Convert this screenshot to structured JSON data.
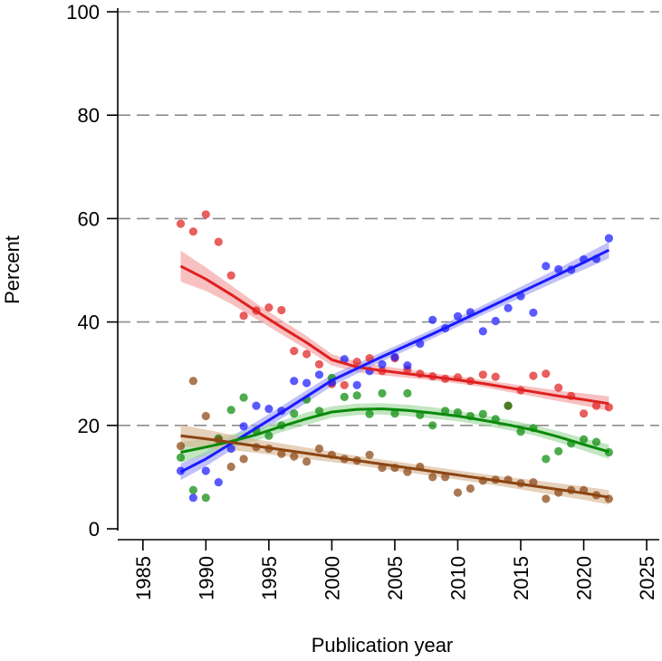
{
  "chart_data": {
    "type": "scatter",
    "title": "",
    "xlabel": "Publication year",
    "ylabel": "Percent",
    "xlim": [
      1983,
      2026
    ],
    "ylim": [
      0,
      100
    ],
    "xticks": [
      1985,
      1990,
      1995,
      2000,
      2005,
      2010,
      2015,
      2020,
      2025
    ],
    "yticks": [
      0,
      20,
      40,
      60,
      80,
      100
    ],
    "grid": "horizontal-dashed",
    "series": [
      {
        "name": "red",
        "color": "#e02020",
        "band_color": "#f5a0a0",
        "points": [
          [
            1988,
            59
          ],
          [
            1989,
            57.5
          ],
          [
            1990,
            60.8
          ],
          [
            1991,
            55.5
          ],
          [
            1992,
            49
          ],
          [
            1993,
            41.2
          ],
          [
            1994,
            42.2
          ],
          [
            1995,
            42.8
          ],
          [
            1996,
            42.3
          ],
          [
            1997,
            34.4
          ],
          [
            1998,
            33.8
          ],
          [
            1999,
            31.8
          ],
          [
            2000,
            28
          ],
          [
            2001,
            27.8
          ],
          [
            2002,
            32.3
          ],
          [
            2003,
            33
          ],
          [
            2004,
            30.5
          ],
          [
            2005,
            33
          ],
          [
            2006,
            30.8
          ],
          [
            2007,
            30
          ],
          [
            2008,
            29.5
          ],
          [
            2009,
            29
          ],
          [
            2010,
            29.3
          ],
          [
            2011,
            28.6
          ],
          [
            2012,
            29.8
          ],
          [
            2013,
            29.4
          ],
          [
            2014,
            23.8
          ],
          [
            2015,
            26.8
          ],
          [
            2016,
            29.6
          ],
          [
            2017,
            30
          ],
          [
            2018,
            27.3
          ],
          [
            2019,
            25.7
          ],
          [
            2020,
            22.3
          ],
          [
            2021,
            23.8
          ],
          [
            2022,
            23.5
          ]
        ],
        "fit": [
          [
            1988,
            50.8
          ],
          [
            1990,
            48.3
          ],
          [
            1992,
            45.3
          ],
          [
            1994,
            42.1
          ],
          [
            1996,
            39
          ],
          [
            1998,
            36
          ],
          [
            2000,
            32.7
          ],
          [
            2002,
            31.3
          ],
          [
            2004,
            30.6
          ],
          [
            2006,
            30
          ],
          [
            2008,
            29.4
          ],
          [
            2010,
            28.8
          ],
          [
            2012,
            28.1
          ],
          [
            2014,
            27.3
          ],
          [
            2016,
            26.5
          ],
          [
            2018,
            25.7
          ],
          [
            2020,
            25
          ],
          [
            2022,
            24.2
          ]
        ],
        "ci": [
          [
            1988,
            47.8,
            53.8
          ],
          [
            1990,
            46,
            50.6
          ],
          [
            1992,
            43.5,
            47.1
          ],
          [
            1994,
            40.6,
            43.6
          ],
          [
            1996,
            37.6,
            40.4
          ],
          [
            1998,
            34.7,
            37.3
          ],
          [
            2000,
            31.6,
            33.8
          ],
          [
            2002,
            30.3,
            32.3
          ],
          [
            2004,
            29.7,
            31.5
          ],
          [
            2006,
            29.2,
            30.8
          ],
          [
            2008,
            28.7,
            30.1
          ],
          [
            2010,
            28.1,
            29.5
          ],
          [
            2012,
            27.4,
            28.8
          ],
          [
            2014,
            26.5,
            28.1
          ],
          [
            2016,
            25.6,
            27.4
          ],
          [
            2018,
            24.7,
            26.7
          ],
          [
            2020,
            23.8,
            26.2
          ],
          [
            2022,
            22.8,
            25.6
          ]
        ]
      },
      {
        "name": "blue",
        "color": "#1a1aff",
        "band_color": "#a0a0f5",
        "points": [
          [
            1988,
            11.2
          ],
          [
            1989,
            6
          ],
          [
            1990,
            11.2
          ],
          [
            1991,
            9
          ],
          [
            1992,
            15.5
          ],
          [
            1993,
            19.8
          ],
          [
            1994,
            23.8
          ],
          [
            1995,
            23.2
          ],
          [
            1996,
            22.8
          ],
          [
            1997,
            28.6
          ],
          [
            1998,
            28.2
          ],
          [
            1999,
            29.8
          ],
          [
            2000,
            28.3
          ],
          [
            2001,
            32.8
          ],
          [
            2002,
            27.8
          ],
          [
            2003,
            30.5
          ],
          [
            2004,
            31.8
          ],
          [
            2005,
            33.2
          ],
          [
            2006,
            31.6
          ],
          [
            2007,
            35.8
          ],
          [
            2008,
            40.4
          ],
          [
            2009,
            38.8
          ],
          [
            2010,
            41.1
          ],
          [
            2011,
            41.9
          ],
          [
            2012,
            38.2
          ],
          [
            2013,
            40.2
          ],
          [
            2014,
            42.7
          ],
          [
            2015,
            45
          ],
          [
            2016,
            41.8
          ],
          [
            2017,
            50.8
          ],
          [
            2018,
            50.2
          ],
          [
            2019,
            50.1
          ],
          [
            2020,
            52.1
          ],
          [
            2021,
            52.2
          ],
          [
            2022,
            56.2
          ]
        ],
        "fit": [
          [
            1988,
            11
          ],
          [
            1990,
            13.5
          ],
          [
            1992,
            16.5
          ],
          [
            1994,
            19.5
          ],
          [
            1996,
            22.5
          ],
          [
            1998,
            25.6
          ],
          [
            2000,
            28.7
          ],
          [
            2002,
            31
          ],
          [
            2004,
            33.3
          ],
          [
            2006,
            35.5
          ],
          [
            2008,
            37.7
          ],
          [
            2010,
            40
          ],
          [
            2012,
            42.3
          ],
          [
            2014,
            44.6
          ],
          [
            2016,
            46.9
          ],
          [
            2018,
            49.2
          ],
          [
            2020,
            51.5
          ],
          [
            2022,
            53.9
          ]
        ],
        "ci": [
          [
            1988,
            9.4,
            12.6
          ],
          [
            1990,
            12.1,
            14.9
          ],
          [
            1992,
            15.2,
            17.8
          ],
          [
            1994,
            18.3,
            20.7
          ],
          [
            1996,
            21.3,
            23.7
          ],
          [
            1998,
            24.4,
            26.8
          ],
          [
            2000,
            27.6,
            29.8
          ],
          [
            2002,
            30,
            32
          ],
          [
            2004,
            32.4,
            34.2
          ],
          [
            2006,
            34.6,
            36.4
          ],
          [
            2008,
            36.8,
            38.6
          ],
          [
            2010,
            39.1,
            40.9
          ],
          [
            2012,
            41.4,
            43.2
          ],
          [
            2014,
            43.6,
            45.6
          ],
          [
            2016,
            45.8,
            48
          ],
          [
            2018,
            48,
            50.4
          ],
          [
            2020,
            50.1,
            52.9
          ],
          [
            2022,
            52.3,
            55.5
          ]
        ]
      },
      {
        "name": "green",
        "color": "#0a8a0a",
        "band_color": "#a0d8a0",
        "points": [
          [
            1988,
            13.8
          ],
          [
            1989,
            7.5
          ],
          [
            1990,
            6
          ],
          [
            1991,
            17.5
          ],
          [
            1992,
            23
          ],
          [
            1993,
            25.4
          ],
          [
            1994,
            19
          ],
          [
            1995,
            18
          ],
          [
            1996,
            20
          ],
          [
            1997,
            22.3
          ],
          [
            1998,
            25
          ],
          [
            1999,
            22.8
          ],
          [
            2000,
            29.2
          ],
          [
            2001,
            25.5
          ],
          [
            2002,
            25.8
          ],
          [
            2003,
            22.2
          ],
          [
            2004,
            26.2
          ],
          [
            2005,
            22.3
          ],
          [
            2006,
            26.2
          ],
          [
            2007,
            22
          ],
          [
            2008,
            20
          ],
          [
            2009,
            22.8
          ],
          [
            2010,
            22.5
          ],
          [
            2011,
            21.8
          ],
          [
            2012,
            22.2
          ],
          [
            2013,
            21.2
          ],
          [
            2014,
            23.8
          ],
          [
            2015,
            18.8
          ],
          [
            2016,
            19.5
          ],
          [
            2017,
            13.5
          ],
          [
            2018,
            15
          ],
          [
            2019,
            16.5
          ],
          [
            2020,
            17.3
          ],
          [
            2021,
            16.8
          ],
          [
            2022,
            14.8
          ]
        ],
        "fit": [
          [
            1988,
            14.8
          ],
          [
            1990,
            15.8
          ],
          [
            1992,
            16.9
          ],
          [
            1994,
            18.2
          ],
          [
            1996,
            19.8
          ],
          [
            1998,
            21.3
          ],
          [
            2000,
            22.6
          ],
          [
            2002,
            23.1
          ],
          [
            2004,
            23.2
          ],
          [
            2006,
            22.9
          ],
          [
            2008,
            22.4
          ],
          [
            2010,
            21.8
          ],
          [
            2012,
            21
          ],
          [
            2014,
            20.1
          ],
          [
            2016,
            19.1
          ],
          [
            2018,
            17.8
          ],
          [
            2020,
            16.3
          ],
          [
            2022,
            14.9
          ]
        ],
        "ci": [
          [
            1988,
            12.8,
            16.8
          ],
          [
            1990,
            14.2,
            17.4
          ],
          [
            1992,
            15.6,
            18.2
          ],
          [
            1994,
            17,
            19.4
          ],
          [
            1996,
            18.7,
            20.9
          ],
          [
            1998,
            20.1,
            22.5
          ],
          [
            2000,
            21.5,
            23.7
          ],
          [
            2002,
            22,
            24.2
          ],
          [
            2004,
            22.1,
            24.3
          ],
          [
            2006,
            21.8,
            24
          ],
          [
            2008,
            21.3,
            23.5
          ],
          [
            2010,
            20.8,
            22.8
          ],
          [
            2012,
            20,
            22
          ],
          [
            2014,
            19.1,
            21.1
          ],
          [
            2016,
            18.1,
            20.1
          ],
          [
            2018,
            16.7,
            18.9
          ],
          [
            2020,
            15.1,
            17.5
          ],
          [
            2022,
            13.5,
            16.3
          ]
        ]
      },
      {
        "name": "brown",
        "color": "#8b4513",
        "band_color": "#d9b896",
        "points": [
          [
            1988,
            16
          ],
          [
            1989,
            28.6
          ],
          [
            1990,
            21.8
          ],
          [
            1991,
            17.2
          ],
          [
            1992,
            12
          ],
          [
            1993,
            13.5
          ],
          [
            1994,
            15.8
          ],
          [
            1995,
            15.5
          ],
          [
            1996,
            14.5
          ],
          [
            1997,
            14
          ],
          [
            1998,
            13
          ],
          [
            1999,
            15.5
          ],
          [
            2000,
            14.3
          ],
          [
            2001,
            13.5
          ],
          [
            2002,
            13.2
          ],
          [
            2003,
            14.3
          ],
          [
            2004,
            11.8
          ],
          [
            2005,
            11.8
          ],
          [
            2006,
            11
          ],
          [
            2007,
            12
          ],
          [
            2008,
            10
          ],
          [
            2009,
            10
          ],
          [
            2010,
            7
          ],
          [
            2011,
            7.8
          ],
          [
            2012,
            9.3
          ],
          [
            2013,
            9.5
          ],
          [
            2014,
            9.5
          ],
          [
            2015,
            8.8
          ],
          [
            2016,
            9
          ],
          [
            2017,
            5.8
          ],
          [
            2018,
            7
          ],
          [
            2019,
            7.5
          ],
          [
            2020,
            7.5
          ],
          [
            2021,
            6.5
          ],
          [
            2022,
            5.8
          ]
        ],
        "fit": [
          [
            1988,
            18
          ],
          [
            1990,
            17.4
          ],
          [
            1992,
            16.7
          ],
          [
            1994,
            16
          ],
          [
            1996,
            15.3
          ],
          [
            1998,
            14.6
          ],
          [
            2000,
            13.9
          ],
          [
            2002,
            13.2
          ],
          [
            2004,
            12.5
          ],
          [
            2006,
            11.8
          ],
          [
            2008,
            11.1
          ],
          [
            2010,
            10.4
          ],
          [
            2012,
            9.7
          ],
          [
            2014,
            9
          ],
          [
            2016,
            8.3
          ],
          [
            2018,
            7.6
          ],
          [
            2020,
            6.9
          ],
          [
            2022,
            6.1
          ]
        ],
        "ci": [
          [
            1988,
            15.9,
            20.1
          ],
          [
            1990,
            15.6,
            19.2
          ],
          [
            1992,
            15.2,
            18.2
          ],
          [
            1994,
            14.7,
            17.3
          ],
          [
            1996,
            14.1,
            16.5
          ],
          [
            1998,
            13.5,
            15.7
          ],
          [
            2000,
            12.9,
            14.9
          ],
          [
            2002,
            12.3,
            14.1
          ],
          [
            2004,
            11.6,
            13.4
          ],
          [
            2006,
            10.9,
            12.7
          ],
          [
            2008,
            10.2,
            12
          ],
          [
            2010,
            9.5,
            11.3
          ],
          [
            2012,
            8.8,
            10.6
          ],
          [
            2014,
            8,
            10
          ],
          [
            2016,
            7.2,
            9.4
          ],
          [
            2018,
            6.4,
            8.8
          ],
          [
            2020,
            5.6,
            8.2
          ],
          [
            2022,
            4.7,
            7.5
          ]
        ]
      }
    ]
  }
}
